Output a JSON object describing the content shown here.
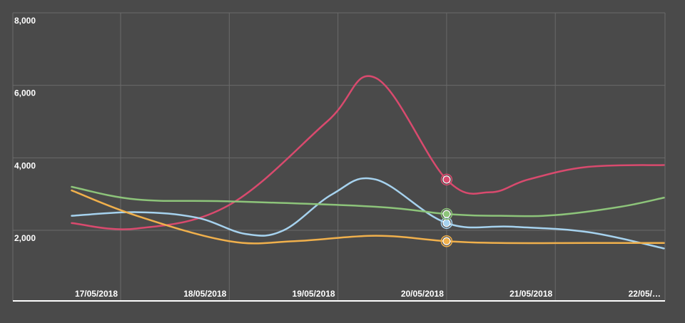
{
  "chart_data": {
    "type": "line",
    "title": "",
    "xlabel": "",
    "ylabel": "",
    "x": [
      "17/05/2018",
      "18/05/2018",
      "19/05/2018",
      "20/05/2018",
      "21/05/2018",
      "22/05/…"
    ],
    "x_positions": [
      0.0,
      1.0,
      2.0,
      3.0,
      4.0,
      5.0
    ],
    "ylim": [
      0,
      8000
    ],
    "yticks": [
      "8,000",
      "6,000",
      "4,000",
      "2,000"
    ],
    "grid": true,
    "legend": "none",
    "series": [
      {
        "color": "#d94a6e",
        "x": [
          -0.45,
          0.15,
          1.0,
          1.9,
          2.35,
          3.0,
          3.4,
          3.75,
          4.3,
          5.0
        ],
        "values": [
          2200,
          2050,
          2700,
          5000,
          6200,
          3400,
          3050,
          3400,
          3750,
          3800
        ],
        "marker_index": 5
      },
      {
        "color": "#a6d2ee",
        "x": [
          -0.45,
          0.15,
          0.7,
          1.15,
          1.5,
          1.95,
          2.35,
          3.0,
          3.6,
          4.3,
          5.0
        ],
        "values": [
          2400,
          2500,
          2350,
          1900,
          2000,
          3000,
          3400,
          2200,
          2100,
          1950,
          1500
        ],
        "marker_index": 7
      },
      {
        "color": "#8dc47a",
        "x": [
          -0.45,
          0.15,
          1.0,
          2.35,
          3.0,
          3.5,
          4.0,
          4.6,
          5.0
        ],
        "values": [
          3200,
          2850,
          2800,
          2650,
          2450,
          2400,
          2420,
          2650,
          2900
        ],
        "marker_index": 4
      },
      {
        "color": "#f0b04c",
        "x": [
          -0.45,
          0.15,
          1.0,
          1.6,
          2.35,
          3.0,
          3.5,
          4.3,
          5.0
        ],
        "values": [
          3100,
          2400,
          1700,
          1700,
          1850,
          1700,
          1650,
          1650,
          1650
        ],
        "marker_index": 5
      }
    ]
  }
}
